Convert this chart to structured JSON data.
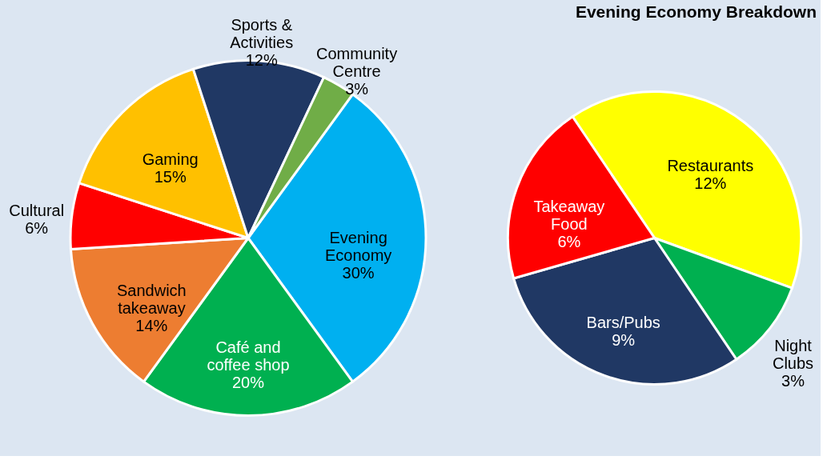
{
  "chart_data": [
    {
      "type": "pie",
      "categories": [
        "Evening\nEconomy",
        "Café and\ncoffee shop",
        "Sandwich\ntakeaway",
        "Cultural",
        "Gaming",
        "Sports &\nActivities",
        "Community\nCentre"
      ],
      "values": [
        30,
        20,
        14,
        6,
        15,
        12,
        3
      ],
      "value_labels": [
        "30%",
        "20%",
        "14%",
        "6%",
        "15%",
        "12%",
        "3%"
      ],
      "colors": [
        "#00b0f0",
        "#00b050",
        "#ed7d31",
        "#ff0000",
        "#ffc000",
        "#203864",
        "#70ad47"
      ],
      "legend": false
    },
    {
      "type": "pie",
      "title": "Evening Economy Breakdown",
      "categories": [
        "Restaurants",
        "Night\nClubs",
        "Bars/Pubs",
        "Takeaway\nFood"
      ],
      "values": [
        12,
        3,
        9,
        6
      ],
      "value_labels": [
        "12%",
        "3%",
        "9%",
        "6%"
      ],
      "colors": [
        "#ffff00",
        "#00b050",
        "#203864",
        "#ff0000"
      ],
      "legend": false
    }
  ]
}
